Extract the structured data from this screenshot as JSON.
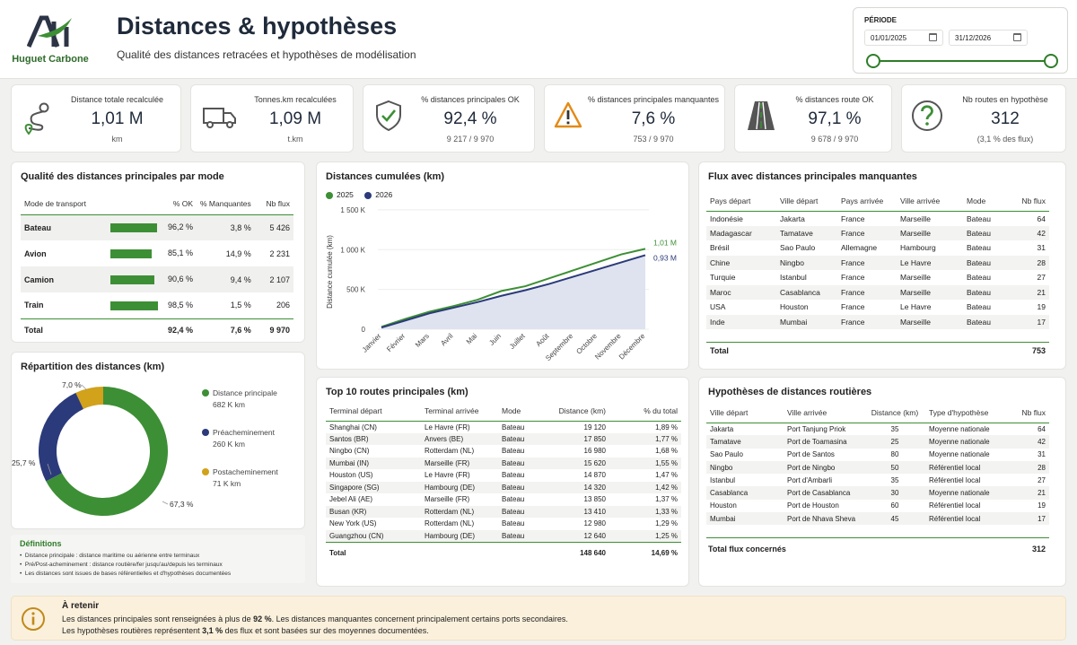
{
  "header": {
    "logo_text": "Huguet Carbone",
    "title": "Distances & hypothèses",
    "subtitle": "Qualité des distances retracées et hypothèses de modélisation",
    "period_label": "PÉRIODE",
    "date_start": "01/01/2025",
    "date_end": "31/12/2026"
  },
  "kpis": [
    {
      "label": "Distance totale recalculée",
      "value": "1,01 M",
      "sub": "km",
      "icon": "route-pin-icon"
    },
    {
      "label": "Tonnes.km recalculées",
      "value": "1,09 M",
      "sub": "t.km",
      "icon": "truck-icon"
    },
    {
      "label": "% distances principales OK",
      "value": "92,4 %",
      "sub": "9 217 / 9 970",
      "icon": "shield-check-icon"
    },
    {
      "label": "% distances principales manquantes",
      "value": "7,6 %",
      "sub": "753 / 9 970",
      "icon": "warning-icon"
    },
    {
      "label": "% distances route OK",
      "value": "97,1 %",
      "sub": "9 678 / 9 970",
      "icon": "road-icon"
    },
    {
      "label": "Nb routes en hypothèse",
      "value": "312",
      "sub": "(3,1 % des flux)",
      "icon": "question-icon"
    }
  ],
  "mode_quality": {
    "title": "Qualité des distances principales par mode",
    "headers": [
      "Mode de transport",
      "% OK",
      "% Manquantes",
      "Nb flux"
    ],
    "rows": [
      {
        "mode": "Bateau",
        "ok_pct": 96.2,
        "ok": "96,2 %",
        "missing": "3,8 %",
        "flux": "5 426"
      },
      {
        "mode": "Avion",
        "ok_pct": 85.1,
        "ok": "85,1 %",
        "missing": "14,9 %",
        "flux": "2 231"
      },
      {
        "mode": "Camion",
        "ok_pct": 90.6,
        "ok": "90,6 %",
        "missing": "9,4 %",
        "flux": "2 107"
      },
      {
        "mode": "Train",
        "ok_pct": 98.5,
        "ok": "98,5 %",
        "missing": "1,5 %",
        "flux": "206"
      }
    ],
    "total": {
      "mode": "Total",
      "ok": "92,4 %",
      "missing": "7,6 %",
      "flux": "9 970"
    }
  },
  "distribution": {
    "title": "Répartition des distances (km)",
    "items": [
      {
        "name": "Distance principale",
        "value": "682 K  km",
        "pct": 67.3,
        "label": "67,3 %",
        "color": "#3d8f35"
      },
      {
        "name": "Préacheminement",
        "value": "260 K  km",
        "pct": 25.7,
        "label": "25,7 %",
        "color": "#2b3a7a"
      },
      {
        "name": "Postacheminement",
        "value": "71 K  km",
        "pct": 7.0,
        "label": "7,0 %",
        "color": "#d1a21a"
      }
    ]
  },
  "definitions": {
    "title": "Définitions",
    "items": [
      "Distance principale : distance maritime ou aérienne entre terminaux",
      "Pré/Post-acheminement : distance routière/fer jusqu'au/depuis les terminaux",
      "Les distances sont issues de bases référentielles et d'hypothèses documentées"
    ]
  },
  "cumulative": {
    "title": "Distances cumulées (km)",
    "end_labels": [
      "1,01 M",
      "0,93 M"
    ]
  },
  "chart_data": {
    "type": "area",
    "title": "Distances cumulées (km)",
    "xlabel": "",
    "ylabel": "Distance cumulée (km)",
    "categories": [
      "Janvier",
      "Février",
      "Mars",
      "Avril",
      "Mai",
      "Juin",
      "Juillet",
      "Août",
      "Septembre",
      "Octobre",
      "Novembre",
      "Décembre"
    ],
    "ylim": [
      0,
      1600000
    ],
    "yticks": [
      0,
      500000,
      1000000,
      1500000
    ],
    "ytick_labels": [
      "0",
      "500 K",
      "1 000 K",
      "1 500 K"
    ],
    "legend": "top-left",
    "series": [
      {
        "name": "2025",
        "color": "#3d8f35",
        "values": [
          30000,
          130000,
          220000,
          290000,
          370000,
          480000,
          540000,
          640000,
          740000,
          840000,
          940000,
          1010000
        ]
      },
      {
        "name": "2026",
        "color": "#2b3a7a",
        "values": [
          20000,
          110000,
          200000,
          270000,
          340000,
          420000,
          490000,
          570000,
          660000,
          750000,
          840000,
          930000
        ]
      }
    ]
  },
  "missing_flux": {
    "title": "Flux avec distances principales manquantes",
    "headers": [
      "Pays départ",
      "Ville départ",
      "Pays arrivée",
      "Ville arrivée",
      "Mode",
      "Nb flux"
    ],
    "rows": [
      [
        "Indonésie",
        "Jakarta",
        "France",
        "Marseille",
        "Bateau",
        "64"
      ],
      [
        "Madagascar",
        "Tamatave",
        "France",
        "Marseille",
        "Bateau",
        "42"
      ],
      [
        "Brésil",
        "Sao Paulo",
        "Allemagne",
        "Hambourg",
        "Bateau",
        "31"
      ],
      [
        "Chine",
        "Ningbo",
        "France",
        "Le Havre",
        "Bateau",
        "28"
      ],
      [
        "Turquie",
        "Istanbul",
        "France",
        "Marseille",
        "Bateau",
        "27"
      ],
      [
        "Maroc",
        "Casablanca",
        "France",
        "Marseille",
        "Bateau",
        "21"
      ],
      [
        "USA",
        "Houston",
        "France",
        "Le Havre",
        "Bateau",
        "19"
      ],
      [
        "Inde",
        "Mumbai",
        "France",
        "Marseille",
        "Bateau",
        "17"
      ]
    ],
    "total_label": "Total",
    "total_value": "753"
  },
  "top_routes": {
    "title": "Top 10 routes principales (km)",
    "headers": [
      "Terminal départ",
      "Terminal arrivée",
      "Mode",
      "Distance (km)",
      "% du total"
    ],
    "rows": [
      [
        "Shanghai (CN)",
        "Le Havre (FR)",
        "Bateau",
        "19 120",
        "1,89 %"
      ],
      [
        "Santos (BR)",
        "Anvers (BE)",
        "Bateau",
        "17 850",
        "1,77 %"
      ],
      [
        "Ningbo (CN)",
        "Rotterdam (NL)",
        "Bateau",
        "16 980",
        "1,68 %"
      ],
      [
        "Mumbai (IN)",
        "Marseille (FR)",
        "Bateau",
        "15 620",
        "1,55 %"
      ],
      [
        "Houston (US)",
        "Le Havre (FR)",
        "Bateau",
        "14 870",
        "1,47 %"
      ],
      [
        "Singapore (SG)",
        "Hambourg (DE)",
        "Bateau",
        "14 320",
        "1,42 %"
      ],
      [
        "Jebel Ali (AE)",
        "Marseille (FR)",
        "Bateau",
        "13 850",
        "1,37 %"
      ],
      [
        "Busan (KR)",
        "Rotterdam (NL)",
        "Bateau",
        "13 410",
        "1,33 %"
      ],
      [
        "New York (US)",
        "Rotterdam (NL)",
        "Bateau",
        "12 980",
        "1,29 %"
      ],
      [
        "Guangzhou (CN)",
        "Hambourg (DE)",
        "Bateau",
        "12 640",
        "1,25 %"
      ]
    ],
    "total_label": "Total",
    "total_distance": "148 640",
    "total_pct": "14,69 %"
  },
  "road_hypotheses": {
    "title": "Hypothèses de distances routières",
    "headers": [
      "Ville départ",
      "Ville arrivée",
      "Distance (km)",
      "Type d'hypothèse",
      "Nb flux"
    ],
    "rows": [
      [
        "Jakarta",
        "Port Tanjung Priok",
        "35",
        "Moyenne nationale",
        "64"
      ],
      [
        "Tamatave",
        "Port de Toamasina",
        "25",
        "Moyenne nationale",
        "42"
      ],
      [
        "Sao Paulo",
        "Port de Santos",
        "80",
        "Moyenne nationale",
        "31"
      ],
      [
        "Ningbo",
        "Port de Ningbo",
        "50",
        "Référentiel local",
        "28"
      ],
      [
        "Istanbul",
        "Port d'Ambarli",
        "35",
        "Référentiel local",
        "27"
      ],
      [
        "Casablanca",
        "Port de Casablanca",
        "30",
        "Moyenne nationale",
        "21"
      ],
      [
        "Houston",
        "Port de Houston",
        "60",
        "Référentiel local",
        "19"
      ],
      [
        "Mumbai",
        "Port de Nhava Sheva",
        "45",
        "Référentiel local",
        "17"
      ]
    ],
    "total_label": "Total flux concernés",
    "total_value": "312"
  },
  "retain": {
    "title": "À retenir",
    "line1_a": "Les distances principales sont renseignées à plus de ",
    "line1_b": "92 %",
    "line1_c": ". Les distances manquantes concernent principalement certains ports secondaires.",
    "line2_a": "Les hypothèses routières représentent ",
    "line2_b": "3,1 %",
    "line2_c": " des flux et sont basées sur des moyennes documentées."
  }
}
